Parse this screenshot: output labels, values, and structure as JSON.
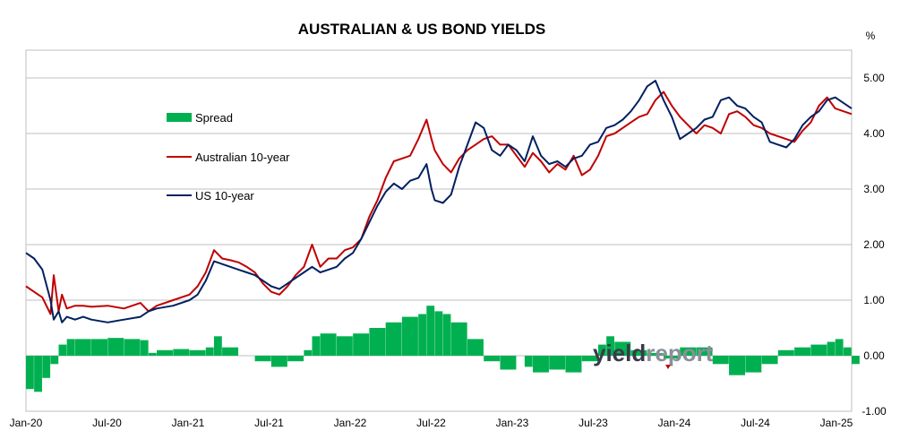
{
  "chart_data": {
    "type": "line",
    "title": "AUSTRALIAN & US BOND YIELDS",
    "ylabel": "%",
    "xlabel": "",
    "ylim": [
      -1.0,
      5.5
    ],
    "yticks": [
      "5.00",
      "4.00",
      "3.00",
      "2.00",
      "1.00",
      "0.00",
      "-1.00"
    ],
    "ytick_values": [
      5,
      4,
      3,
      2,
      1,
      0,
      -1
    ],
    "xticks": [
      "Jan-20",
      "Jul-20",
      "Jan-21",
      "Jul-21",
      "Jan-22",
      "Jul-22",
      "Jan-23",
      "Jul-23",
      "Jan-24",
      "Jul-24",
      "Jan-25"
    ],
    "xlim": [
      2020.0,
      2025.05
    ],
    "grid": true,
    "legend_position": "left",
    "series": [
      {
        "name": "Spread",
        "kind": "bar",
        "color": "#00b050",
        "x": [
          2020.0,
          2020.05,
          2020.1,
          2020.15,
          2020.2,
          2020.25,
          2020.3,
          2020.4,
          2020.5,
          2020.6,
          2020.7,
          2020.75,
          2020.8,
          2020.9,
          2021.0,
          2021.1,
          2021.15,
          2021.2,
          2021.3,
          2021.4,
          2021.5,
          2021.6,
          2021.7,
          2021.75,
          2021.8,
          2021.9,
          2022.0,
          2022.1,
          2022.2,
          2022.3,
          2022.4,
          2022.45,
          2022.5,
          2022.55,
          2022.6,
          2022.7,
          2022.8,
          2022.9,
          2023.0,
          2023.05,
          2023.1,
          2023.2,
          2023.3,
          2023.4,
          2023.5,
          2023.55,
          2023.6,
          2023.7,
          2023.8,
          2023.9,
          2024.0,
          2024.1,
          2024.2,
          2024.3,
          2024.4,
          2024.5,
          2024.6,
          2024.7,
          2024.8,
          2024.9,
          2024.95,
          2025.0,
          2025.05
        ],
        "values": [
          -0.6,
          -0.65,
          -0.4,
          -0.15,
          0.2,
          0.3,
          0.3,
          0.3,
          0.32,
          0.3,
          0.28,
          0.05,
          0.1,
          0.12,
          0.1,
          0.15,
          0.35,
          0.15,
          0.0,
          -0.1,
          -0.2,
          -0.1,
          0.1,
          0.35,
          0.4,
          0.35,
          0.4,
          0.5,
          0.6,
          0.7,
          0.75,
          0.9,
          0.8,
          0.75,
          0.6,
          0.3,
          -0.1,
          -0.25,
          0.0,
          -0.2,
          -0.3,
          -0.25,
          -0.3,
          -0.1,
          0.2,
          0.35,
          0.25,
          0.1,
          0.05,
          -0.05,
          0.15,
          0.15,
          -0.15,
          -0.35,
          -0.3,
          -0.15,
          0.1,
          0.15,
          0.2,
          0.25,
          0.3,
          0.15,
          -0.15
        ]
      },
      {
        "name": "Australian 10-year",
        "kind": "line",
        "color": "#c00000",
        "x": [
          2020.0,
          2020.05,
          2020.1,
          2020.15,
          2020.17,
          2020.2,
          2020.22,
          2020.25,
          2020.3,
          2020.35,
          2020.4,
          2020.5,
          2020.6,
          2020.7,
          2020.75,
          2020.8,
          2020.9,
          2021.0,
          2021.05,
          2021.1,
          2021.15,
          2021.2,
          2021.25,
          2021.3,
          2021.35,
          2021.4,
          2021.45,
          2021.5,
          2021.55,
          2021.6,
          2021.65,
          2021.7,
          2021.75,
          2021.8,
          2021.85,
          2021.9,
          2021.95,
          2022.0,
          2022.05,
          2022.1,
          2022.15,
          2022.2,
          2022.25,
          2022.3,
          2022.35,
          2022.4,
          2022.45,
          2022.48,
          2022.5,
          2022.55,
          2022.6,
          2022.65,
          2022.7,
          2022.75,
          2022.8,
          2022.85,
          2022.9,
          2022.95,
          2023.0,
          2023.05,
          2023.1,
          2023.15,
          2023.2,
          2023.25,
          2023.3,
          2023.35,
          2023.4,
          2023.45,
          2023.5,
          2023.55,
          2023.6,
          2023.65,
          2023.7,
          2023.75,
          2023.8,
          2023.85,
          2023.9,
          2023.95,
          2024.0,
          2024.05,
          2024.1,
          2024.15,
          2024.2,
          2024.25,
          2024.3,
          2024.35,
          2024.4,
          2024.45,
          2024.5,
          2024.55,
          2024.6,
          2024.65,
          2024.7,
          2024.75,
          2024.8,
          2024.85,
          2024.9,
          2024.95,
          2025.0,
          2025.05
        ],
        "values": [
          1.25,
          1.15,
          1.05,
          0.75,
          1.45,
          0.8,
          1.1,
          0.85,
          0.9,
          0.9,
          0.88,
          0.9,
          0.85,
          0.95,
          0.8,
          0.9,
          1.0,
          1.1,
          1.25,
          1.5,
          1.9,
          1.75,
          1.72,
          1.68,
          1.6,
          1.5,
          1.3,
          1.15,
          1.1,
          1.25,
          1.45,
          1.6,
          2.0,
          1.6,
          1.75,
          1.75,
          1.9,
          1.95,
          2.1,
          2.5,
          2.8,
          3.2,
          3.5,
          3.55,
          3.6,
          3.9,
          4.25,
          3.9,
          3.7,
          3.45,
          3.3,
          3.55,
          3.7,
          3.8,
          3.9,
          3.95,
          3.8,
          3.8,
          3.6,
          3.4,
          3.65,
          3.5,
          3.3,
          3.45,
          3.35,
          3.6,
          3.25,
          3.35,
          3.6,
          3.95,
          4.0,
          4.1,
          4.2,
          4.3,
          4.35,
          4.6,
          4.75,
          4.5,
          4.3,
          4.15,
          4.0,
          4.15,
          4.1,
          4.0,
          4.35,
          4.4,
          4.3,
          4.15,
          4.1,
          4.0,
          3.95,
          3.9,
          3.85,
          4.05,
          4.2,
          4.5,
          4.65,
          4.45,
          4.4,
          4.35
        ]
      },
      {
        "name": "US 10-year",
        "kind": "line",
        "color": "#002060",
        "x": [
          2020.0,
          2020.05,
          2020.1,
          2020.15,
          2020.17,
          2020.2,
          2020.22,
          2020.25,
          2020.3,
          2020.35,
          2020.4,
          2020.5,
          2020.6,
          2020.7,
          2020.75,
          2020.8,
          2020.9,
          2021.0,
          2021.05,
          2021.1,
          2021.15,
          2021.2,
          2021.25,
          2021.3,
          2021.35,
          2021.4,
          2021.45,
          2021.5,
          2021.55,
          2021.6,
          2021.65,
          2021.7,
          2021.75,
          2021.8,
          2021.85,
          2021.9,
          2021.95,
          2022.0,
          2022.05,
          2022.1,
          2022.15,
          2022.2,
          2022.25,
          2022.3,
          2022.35,
          2022.4,
          2022.45,
          2022.48,
          2022.5,
          2022.55,
          2022.6,
          2022.65,
          2022.7,
          2022.75,
          2022.8,
          2022.85,
          2022.9,
          2022.95,
          2023.0,
          2023.05,
          2023.1,
          2023.15,
          2023.2,
          2023.25,
          2023.3,
          2023.35,
          2023.4,
          2023.45,
          2023.5,
          2023.55,
          2023.6,
          2023.65,
          2023.7,
          2023.75,
          2023.8,
          2023.85,
          2023.9,
          2023.95,
          2024.0,
          2024.05,
          2024.1,
          2024.15,
          2024.2,
          2024.25,
          2024.3,
          2024.35,
          2024.4,
          2024.45,
          2024.5,
          2024.55,
          2024.6,
          2024.65,
          2024.7,
          2024.75,
          2024.8,
          2024.85,
          2024.9,
          2024.95,
          2025.0,
          2025.05
        ],
        "values": [
          1.85,
          1.75,
          1.55,
          1.0,
          0.65,
          0.8,
          0.6,
          0.7,
          0.65,
          0.7,
          0.65,
          0.6,
          0.65,
          0.7,
          0.8,
          0.85,
          0.9,
          1.0,
          1.1,
          1.35,
          1.7,
          1.65,
          1.6,
          1.55,
          1.5,
          1.45,
          1.35,
          1.25,
          1.2,
          1.3,
          1.4,
          1.5,
          1.6,
          1.5,
          1.55,
          1.6,
          1.75,
          1.85,
          2.1,
          2.4,
          2.7,
          2.95,
          3.1,
          3.0,
          3.15,
          3.2,
          3.45,
          3.0,
          2.8,
          2.75,
          2.9,
          3.4,
          3.8,
          4.2,
          4.1,
          3.7,
          3.6,
          3.8,
          3.7,
          3.5,
          3.95,
          3.6,
          3.45,
          3.5,
          3.4,
          3.55,
          3.6,
          3.8,
          3.85,
          4.1,
          4.15,
          4.25,
          4.4,
          4.6,
          4.85,
          4.95,
          4.6,
          4.3,
          3.9,
          4.0,
          4.1,
          4.25,
          4.3,
          4.6,
          4.65,
          4.5,
          4.45,
          4.3,
          4.2,
          3.85,
          3.8,
          3.75,
          3.9,
          4.15,
          4.3,
          4.4,
          4.6,
          4.65,
          4.55,
          4.45
        ]
      }
    ],
    "watermark": {
      "part1": "yield",
      "part2": "report"
    }
  }
}
